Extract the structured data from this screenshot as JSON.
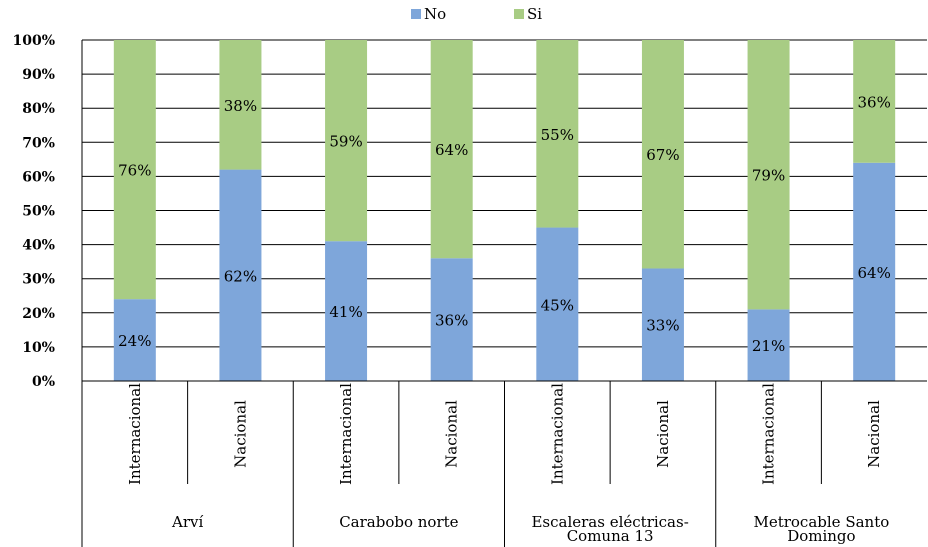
{
  "chart_data": {
    "type": "bar",
    "stacked": true,
    "percent": true,
    "title": "",
    "xlabel": "",
    "ylabel": "",
    "ylim": [
      0,
      100
    ],
    "y_ticks": [
      "0%",
      "10%",
      "20%",
      "30%",
      "40%",
      "50%",
      "60%",
      "70%",
      "80%",
      "90%",
      "100%"
    ],
    "grid": true,
    "legend_position": "top",
    "groups": [
      "Arví",
      "Carabobo norte",
      "Escaleras eléctricas-Comuna 13",
      "Metrocable Santo Domingo"
    ],
    "group_label_lines": [
      [
        "Arví"
      ],
      [
        "Carabobo norte"
      ],
      [
        "Escaleras eléctricas-",
        "Comuna 13"
      ],
      [
        "Metrocable Santo",
        "Domingo"
      ]
    ],
    "categories": [
      "Internacional",
      "Nacional",
      "Internacional",
      "Nacional",
      "Internacional",
      "Nacional",
      "Internacional",
      "Nacional"
    ],
    "series": [
      {
        "name": "No",
        "color": "#7ea6da",
        "values": [
          24,
          62,
          41,
          36,
          45,
          33,
          21,
          64
        ],
        "labels": [
          "24%",
          "62%",
          "41%",
          "36%",
          "45%",
          "33%",
          "21%",
          "64%"
        ]
      },
      {
        "name": "Si",
        "color": "#a8cc84",
        "values": [
          76,
          38,
          59,
          64,
          55,
          67,
          79,
          36
        ],
        "labels": [
          "76%",
          "38%",
          "59%",
          "64%",
          "55%",
          "67%",
          "79%",
          "36%"
        ]
      }
    ]
  }
}
